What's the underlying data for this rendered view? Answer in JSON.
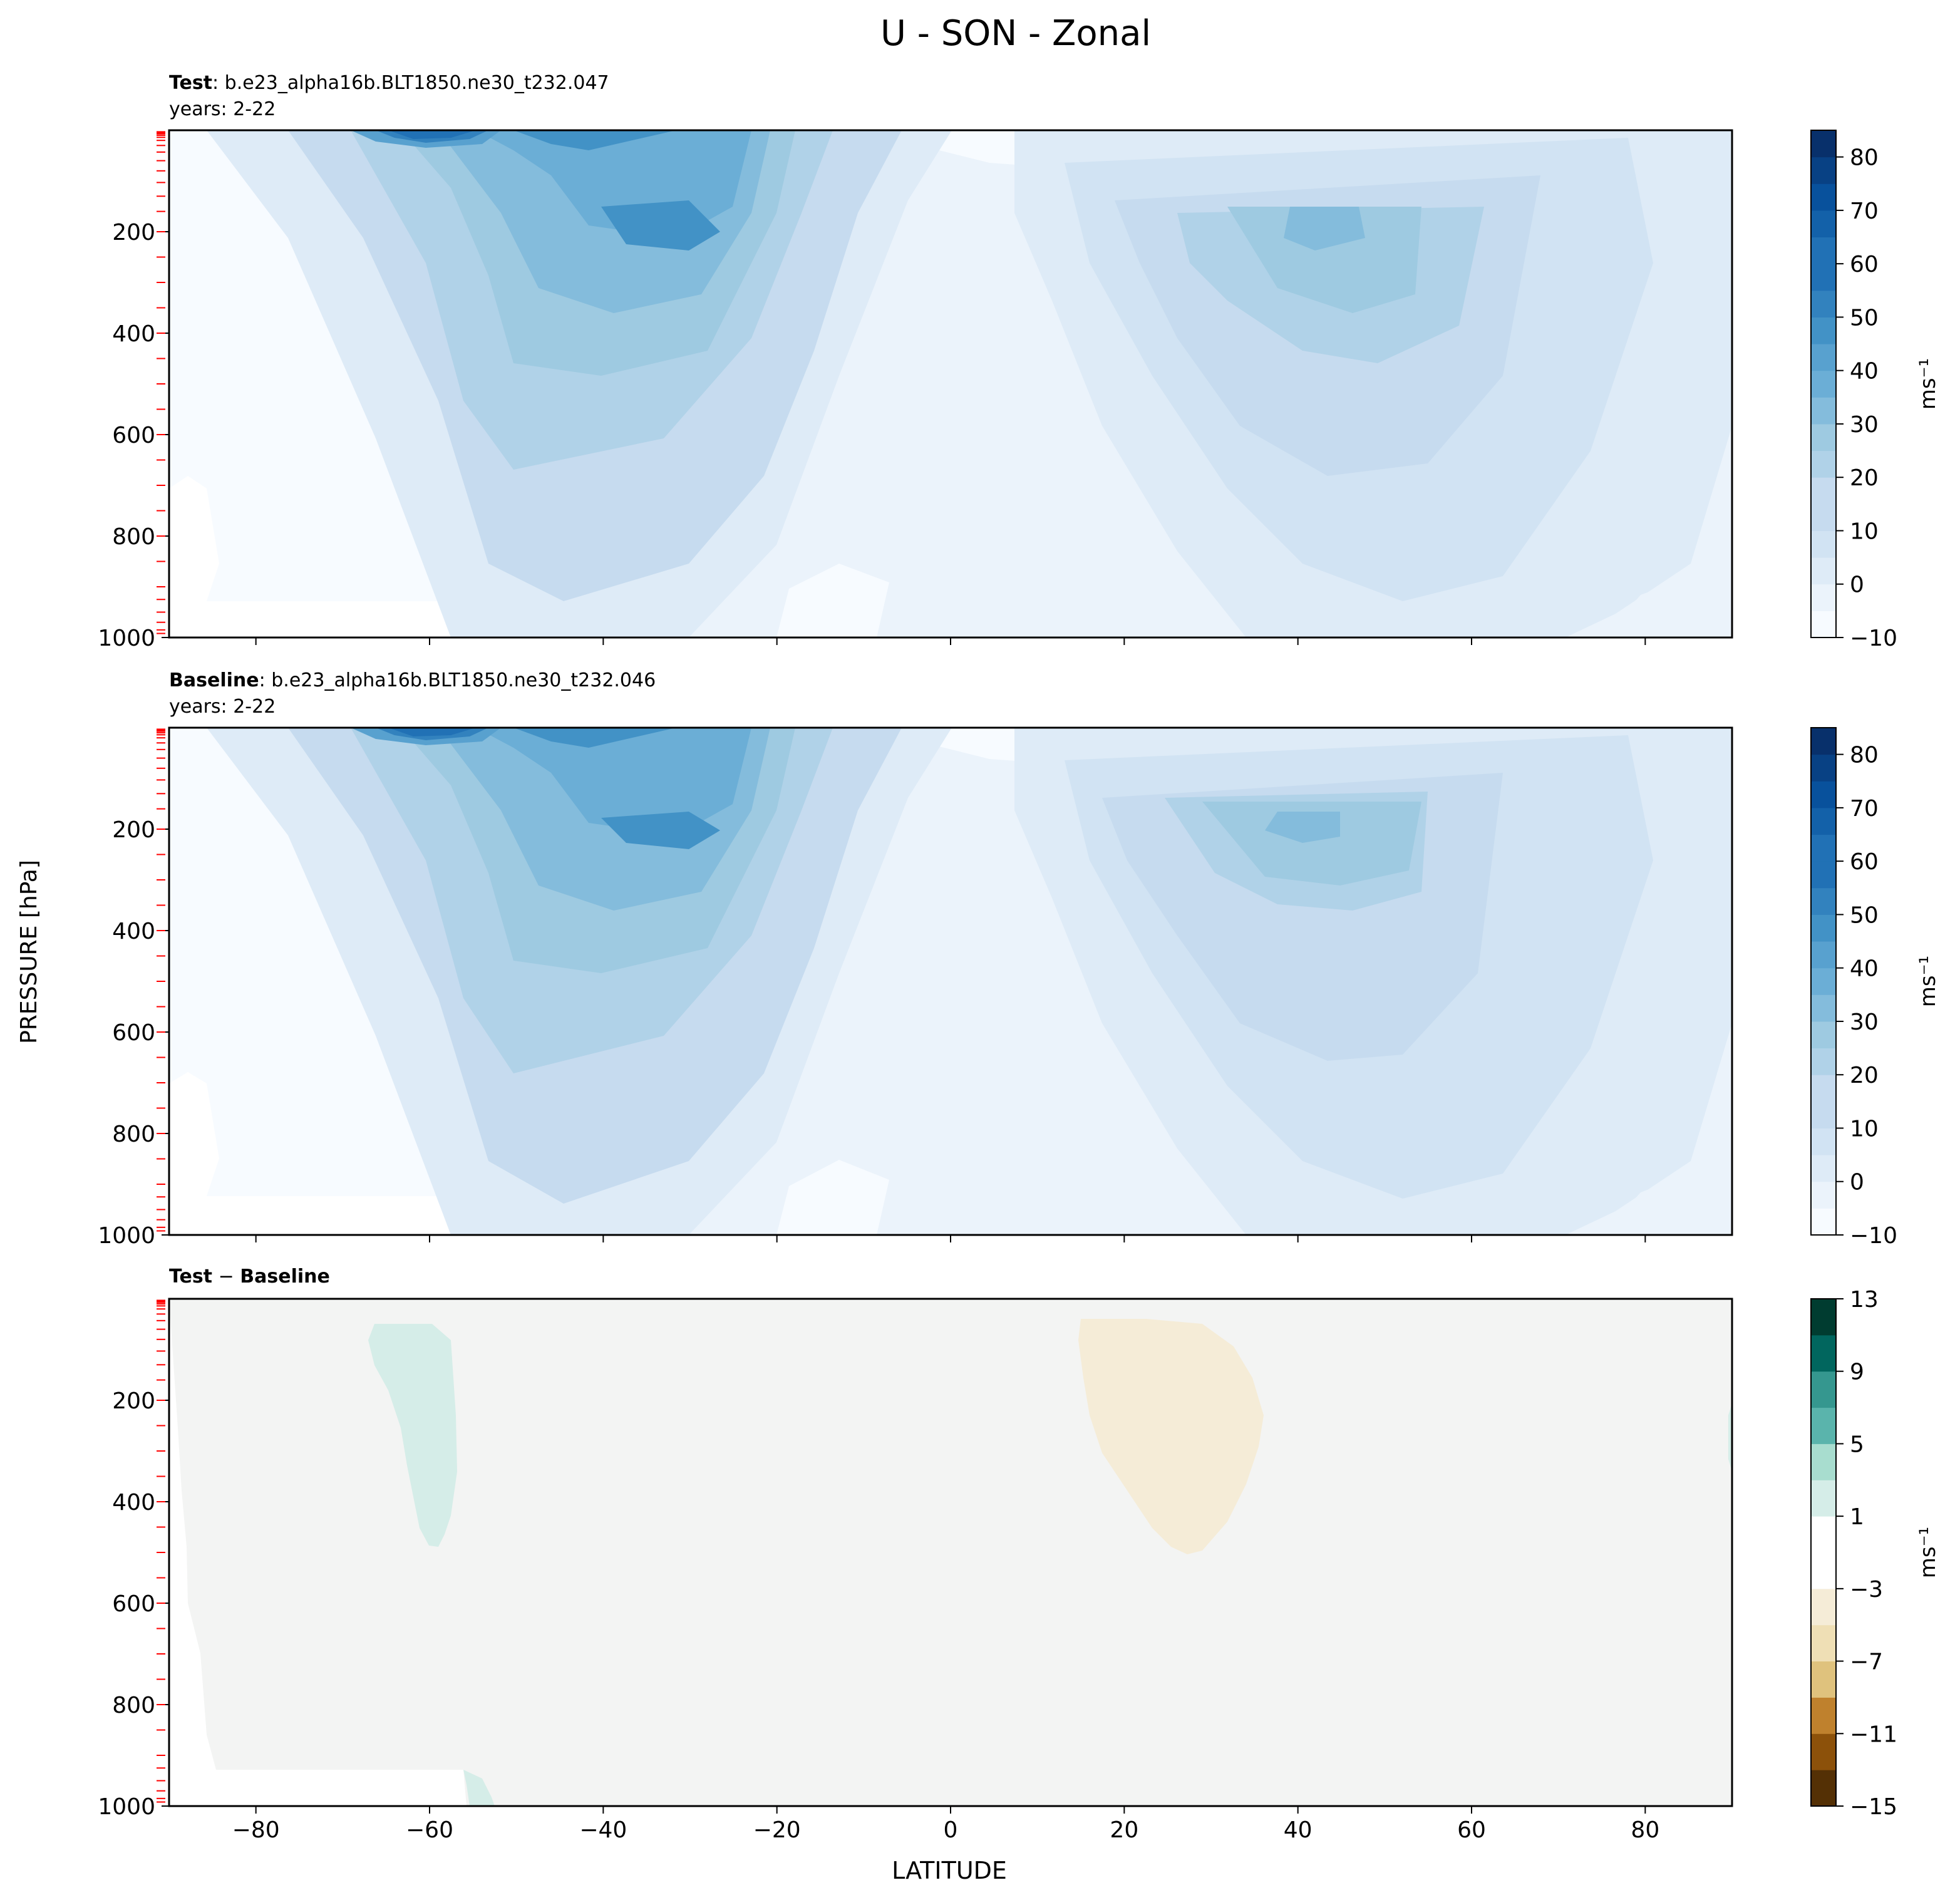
{
  "figure": {
    "title": "U - SON - Zonal",
    "ylabel": "PRESSURE [hPa]",
    "xlabel": "LATITUDE"
  },
  "chart_data": [
    {
      "type": "heatmap",
      "panel": "test",
      "label_bold": "Test",
      "label_rest": ": b.e23_alpha16b.BLT1850.ne30_t232.047",
      "years": "years: 2-22",
      "x_range": [
        -90,
        90
      ],
      "y_range": [
        1000,
        0
      ],
      "y_inverted": true,
      "x_ticks": [
        "−80",
        "−60",
        "−40",
        "−20",
        "0",
        "20",
        "40",
        "60",
        "80"
      ],
      "y_ticks": [
        "200",
        "400",
        "600",
        "800",
        "1000"
      ],
      "contour_levels": [
        -10,
        -5,
        0,
        5,
        10,
        15,
        20,
        25,
        30,
        35,
        40,
        45,
        50,
        55,
        60,
        65,
        70,
        75,
        80,
        85
      ],
      "colorbar_ticks": [
        "80",
        "70",
        "60",
        "50",
        "40",
        "30",
        "20",
        "10",
        "0",
        "−10"
      ],
      "colorbar_label": "ms⁻¹",
      "colormap": "Blues",
      "jet_maxima": [
        {
          "lat": -63,
          "pressure": 10,
          "value": 65
        },
        {
          "lat": -30,
          "pressure": 200,
          "value": 45
        },
        {
          "lat": 42,
          "pressure": 200,
          "value": 35
        }
      ]
    },
    {
      "type": "heatmap",
      "panel": "baseline",
      "label_bold": "Baseline",
      "label_rest": ": b.e23_alpha16b.BLT1850.ne30_t232.046",
      "years": "years: 2-22",
      "x_range": [
        -90,
        90
      ],
      "y_range": [
        1000,
        0
      ],
      "y_inverted": true,
      "x_ticks": [
        "−80",
        "−60",
        "−40",
        "−20",
        "0",
        "20",
        "40",
        "60",
        "80"
      ],
      "y_ticks": [
        "200",
        "400",
        "600",
        "800",
        "1000"
      ],
      "contour_levels": [
        -10,
        -5,
        0,
        5,
        10,
        15,
        20,
        25,
        30,
        35,
        40,
        45,
        50,
        55,
        60,
        65,
        70,
        75,
        80,
        85
      ],
      "colorbar_ticks": [
        "80",
        "70",
        "60",
        "50",
        "40",
        "30",
        "20",
        "10",
        "0",
        "−10"
      ],
      "colorbar_label": "ms⁻¹",
      "colormap": "Blues",
      "jet_maxima": [
        {
          "lat": -63,
          "pressure": 10,
          "value": 65
        },
        {
          "lat": -30,
          "pressure": 200,
          "value": 45
        },
        {
          "lat": 41,
          "pressure": 200,
          "value": 35
        }
      ]
    },
    {
      "type": "heatmap",
      "panel": "difference",
      "label_bold": "Test",
      "label_sep": " − ",
      "label_bold2": "Baseline",
      "x_range": [
        -90,
        90
      ],
      "y_range": [
        1000,
        0
      ],
      "y_inverted": true,
      "x_ticks": [
        "−80",
        "−60",
        "−40",
        "−20",
        "0",
        "20",
        "40",
        "60",
        "80"
      ],
      "y_ticks": [
        "200",
        "400",
        "600",
        "800",
        "1000"
      ],
      "contour_levels": [
        -15,
        -13,
        -11,
        -9,
        -7,
        -5,
        -3,
        -1,
        1,
        3,
        5,
        7,
        9,
        11,
        13
      ],
      "colorbar_ticks": [
        "13",
        "9",
        "5",
        "1",
        "−3",
        "−7",
        "−11",
        "−15"
      ],
      "colorbar_label": "ms⁻¹",
      "colormap": "BrBG",
      "anomalies": [
        {
          "lat_range": [
            -67,
            -57
          ],
          "pressure_range": [
            50,
            470
          ],
          "sign": "positive",
          "range": [
            1,
            3
          ]
        },
        {
          "lat_range": [
            14,
            36
          ],
          "pressure_range": [
            40,
            440
          ],
          "sign": "negative",
          "range": [
            -3,
            -1
          ]
        }
      ]
    }
  ],
  "colors": {
    "blues": [
      "#f7fbff",
      "#ebf3fb",
      "#deebf7",
      "#d1e3f3",
      "#c6dbef",
      "#b0d2e8",
      "#9ecae1",
      "#84bcdc",
      "#6baed6",
      "#58a1cf",
      "#4292c6",
      "#3282be",
      "#2171b5",
      "#1361a9",
      "#08519c",
      "#084184",
      "#08306b"
    ],
    "brbg": [
      "#543005",
      "#8c510a",
      "#bf812d",
      "#dfc27d",
      "#efdfb5",
      "#f5ecd7",
      "#ffffff",
      "#d5ede8",
      "#a8ddcf",
      "#5ab4ac",
      "#35978f",
      "#01665e",
      "#003c30"
    ],
    "neutral": "#f3f4f3",
    "levels_marker": "#ff0000"
  }
}
